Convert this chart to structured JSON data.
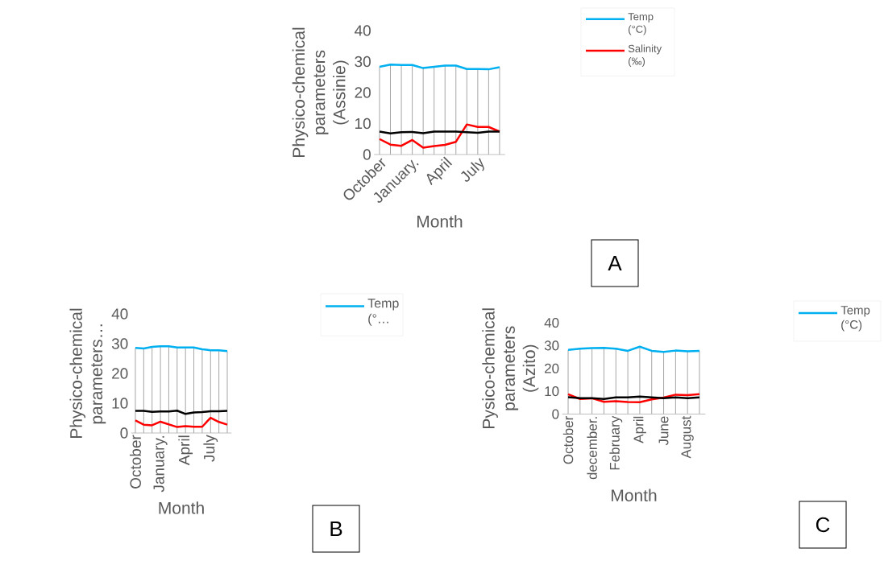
{
  "chart_data": [
    {
      "type": "line",
      "categories": [
        "October",
        null,
        null,
        "January.",
        null,
        null,
        "April",
        null,
        null,
        "July",
        null,
        null
      ],
      "xlabel": "Month",
      "ylabel": "Physico-chemical parameters (Assinie)",
      "ylim": [
        0,
        40
      ],
      "yticks": [
        0,
        10,
        20,
        30,
        40
      ],
      "grid": "x",
      "legend": "top right",
      "annotations": [
        "A"
      ],
      "series": [
        {
          "name": "Temp (°C)",
          "color": "#00b0f0",
          "values": [
            28.3,
            29.0,
            28.9,
            28.9,
            27.9,
            28.3,
            28.7,
            28.7,
            27.6,
            27.6,
            27.5,
            28.2
          ]
        },
        {
          "name": "Salinity (‰)",
          "color": "#ff0000",
          "values": [
            5.0,
            3.2,
            2.8,
            4.7,
            2.2,
            2.7,
            3.1,
            4.1,
            9.7,
            8.9,
            8.9,
            7.4
          ]
        },
        {
          "color": "#000000",
          "values": [
            7.4,
            6.8,
            7.2,
            7.3,
            6.9,
            7.4,
            7.4,
            7.4,
            7.2,
            7.0,
            7.4,
            7.4
          ]
        }
      ]
    },
    {
      "type": "line",
      "categories": [
        "October",
        null,
        null,
        "January.",
        null,
        null,
        "April",
        null,
        null,
        "July",
        null,
        null
      ],
      "xlabel": "Month",
      "ylabel": "Physico-chemical parameters…",
      "ylim": [
        0,
        40
      ],
      "yticks": [
        0,
        10,
        20,
        30,
        40
      ],
      "grid": "x",
      "legend": "top right",
      "annotations": [
        "B"
      ],
      "series": [
        {
          "name": "Temp (°…",
          "color": "#00b0f0",
          "values": [
            28.6,
            28.4,
            28.9,
            29.1,
            29.1,
            28.7,
            28.7,
            28.7,
            28.1,
            27.8,
            27.8,
            27.5
          ]
        },
        {
          "color": "#ff0000",
          "values": [
            4.2,
            2.8,
            2.6,
            3.8,
            2.9,
            2.0,
            2.3,
            2.1,
            2.1,
            5.1,
            3.7,
            2.8
          ]
        },
        {
          "color": "#000000",
          "values": [
            7.4,
            7.4,
            7.1,
            7.2,
            7.2,
            7.5,
            6.4,
            6.9,
            7.0,
            7.3,
            7.3,
            7.4
          ]
        }
      ]
    },
    {
      "type": "line",
      "categories": [
        "October",
        null,
        "december.",
        null,
        "February",
        null,
        "April",
        null,
        "June",
        null,
        "August",
        null
      ],
      "xlabel": "Month",
      "ylabel": "Pysico-chemical parameters (Azito)",
      "ylim": [
        0,
        40
      ],
      "yticks": [
        0,
        10,
        20,
        30,
        40
      ],
      "grid": "x",
      "legend": "top right",
      "annotations": [
        "C"
      ],
      "series": [
        {
          "name": "Temp (°C)",
          "color": "#00b0f0",
          "values": [
            28.1,
            28.6,
            28.9,
            29.0,
            28.6,
            27.7,
            29.5,
            27.7,
            27.2,
            27.8,
            27.5,
            27.7
          ]
        },
        {
          "color": "#ff0000",
          "values": [
            8.7,
            6.6,
            6.9,
            5.4,
            5.6,
            5.3,
            5.2,
            6.4,
            7.2,
            8.5,
            8.3,
            8.7
          ]
        },
        {
          "color": "#000000",
          "values": [
            7.4,
            7.0,
            7.0,
            6.6,
            7.3,
            7.3,
            7.7,
            7.3,
            7.0,
            7.3,
            7.0,
            7.3
          ]
        }
      ]
    }
  ]
}
